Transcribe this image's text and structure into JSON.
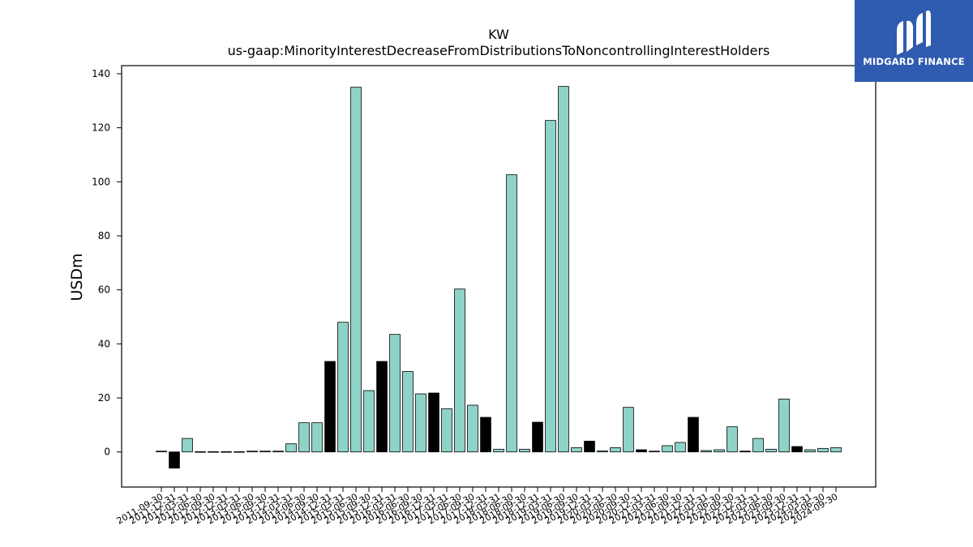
{
  "brand": {
    "name": "MIDGARD FINANCE",
    "color": "#2f5bb0",
    "icon": "midgard-logo-icon"
  },
  "chart_data": {
    "type": "bar",
    "title": "KW",
    "subtitle": "us-gaap:MinorityInterestDecreaseFromDistributionsToNoncontrollingInterestHolders",
    "ylabel": "USDm",
    "xlabel": "",
    "ylim": [
      -13,
      143
    ],
    "yticks": [
      0,
      20,
      40,
      60,
      80,
      100,
      120,
      140
    ],
    "grid": false,
    "colors": {
      "positive": "#8dd3c7",
      "highlight": "#000000",
      "edge": "#000000"
    },
    "categories": [
      "2011-09-30",
      "2011-12-31",
      "2012-03-31",
      "2012-06-30",
      "2012-09-30",
      "2012-12-31",
      "2013-03-31",
      "2013-06-30",
      "2013-09-30",
      "2013-12-31",
      "2014-03-31",
      "2014-06-30",
      "2014-09-30",
      "2014-12-31",
      "2015-03-31",
      "2015-06-30",
      "2015-09-30",
      "2015-12-31",
      "2016-03-31",
      "2016-06-30",
      "2016-09-30",
      "2016-12-31",
      "2017-03-31",
      "2017-06-30",
      "2017-09-30",
      "2017-12-31",
      "2018-03-31",
      "2018-06-30",
      "2018-09-30",
      "2018-12-31",
      "2019-03-31",
      "2019-06-30",
      "2019-09-30",
      "2019-12-31",
      "2020-03-31",
      "2020-06-30",
      "2020-09-30",
      "2020-12-31",
      "2021-03-31",
      "2021-06-30",
      "2021-09-30",
      "2021-12-31",
      "2022-03-31",
      "2022-06-30",
      "2022-09-30",
      "2022-12-31",
      "2023-03-31",
      "2023-06-30",
      "2023-09-30",
      "2023-12-31",
      "2024-03-31",
      "2024-06-30",
      "2024-09-30"
    ],
    "values": [
      0.3,
      -6,
      5,
      0.1,
      0.1,
      0.1,
      0.1,
      0.3,
      0.3,
      0.3,
      3,
      10.8,
      10.8,
      33.5,
      48,
      135,
      22.7,
      33.5,
      43.5,
      29.8,
      21.5,
      21.8,
      16,
      60.3,
      17.3,
      12.8,
      1,
      102.6,
      1,
      11,
      122.7,
      135.3,
      1.6,
      4,
      0.4,
      1.6,
      16.5,
      0.8,
      0.3,
      2.3,
      3.5,
      12.8,
      0.5,
      0.8,
      9.3,
      0.3,
      5,
      1,
      19.6,
      2,
      0.8,
      1.3,
      1.6
    ],
    "highlighted": [
      false,
      true,
      false,
      false,
      false,
      false,
      false,
      false,
      false,
      false,
      false,
      false,
      false,
      true,
      false,
      false,
      false,
      true,
      false,
      false,
      false,
      true,
      false,
      false,
      false,
      true,
      false,
      false,
      false,
      true,
      false,
      false,
      false,
      true,
      false,
      false,
      false,
      true,
      false,
      false,
      false,
      true,
      false,
      false,
      false,
      true,
      false,
      false,
      false,
      true,
      false,
      false,
      false
    ]
  }
}
